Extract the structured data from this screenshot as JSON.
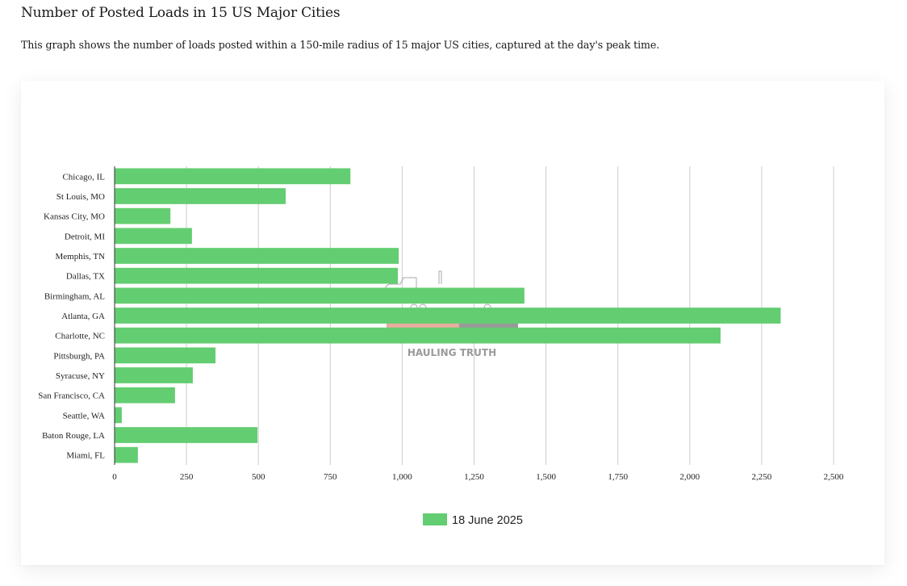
{
  "page": {
    "title": "Number of Posted Loads in 15 US Major Cities",
    "description": "This graph shows the number of loads posted within a 150-mile radius of 15 major US cities, captured at the day's peak time."
  },
  "watermark": {
    "text": "HAULING TRUTH",
    "icon": "truck-icon"
  },
  "colors": {
    "bar": "#63CD71",
    "grid": "#CCCCCC",
    "axis": "#333333"
  },
  "chart_data": {
    "type": "bar",
    "orientation": "horizontal",
    "title": "",
    "xlabel": "",
    "ylabel": "",
    "categories": [
      "Chicago, IL",
      "St Louis, MO",
      "Kansas City, MO",
      "Detroit, MI",
      "Memphis, TN",
      "Dallas, TX",
      "Birmingham, AL",
      "Atlanta, GA",
      "Charlotte, NC",
      "Pittsburgh, PA",
      "Syracuse, NY",
      "San Francisco, CA",
      "Seattle, WA",
      "Baton Rouge, LA",
      "Miami, FL"
    ],
    "series": [
      {
        "name": "18 June 2025",
        "color": "#63CD71",
        "values": [
          820,
          595,
          194,
          269,
          988,
          985,
          1425,
          2316,
          2107,
          351,
          272,
          210,
          25,
          497,
          81
        ]
      }
    ],
    "xlim": [
      0,
      2500
    ],
    "x_ticks": [
      0,
      250,
      500,
      750,
      1000,
      1250,
      1500,
      1750,
      2000,
      2250,
      2500
    ],
    "x_tick_labels": [
      "0",
      "250",
      "500",
      "750",
      "1,000",
      "1,250",
      "1,500",
      "1,750",
      "2,000",
      "2,250",
      "2,500"
    ],
    "grid": true,
    "legend": {
      "position": "bottom",
      "entries": [
        "18 June 2025"
      ]
    }
  }
}
